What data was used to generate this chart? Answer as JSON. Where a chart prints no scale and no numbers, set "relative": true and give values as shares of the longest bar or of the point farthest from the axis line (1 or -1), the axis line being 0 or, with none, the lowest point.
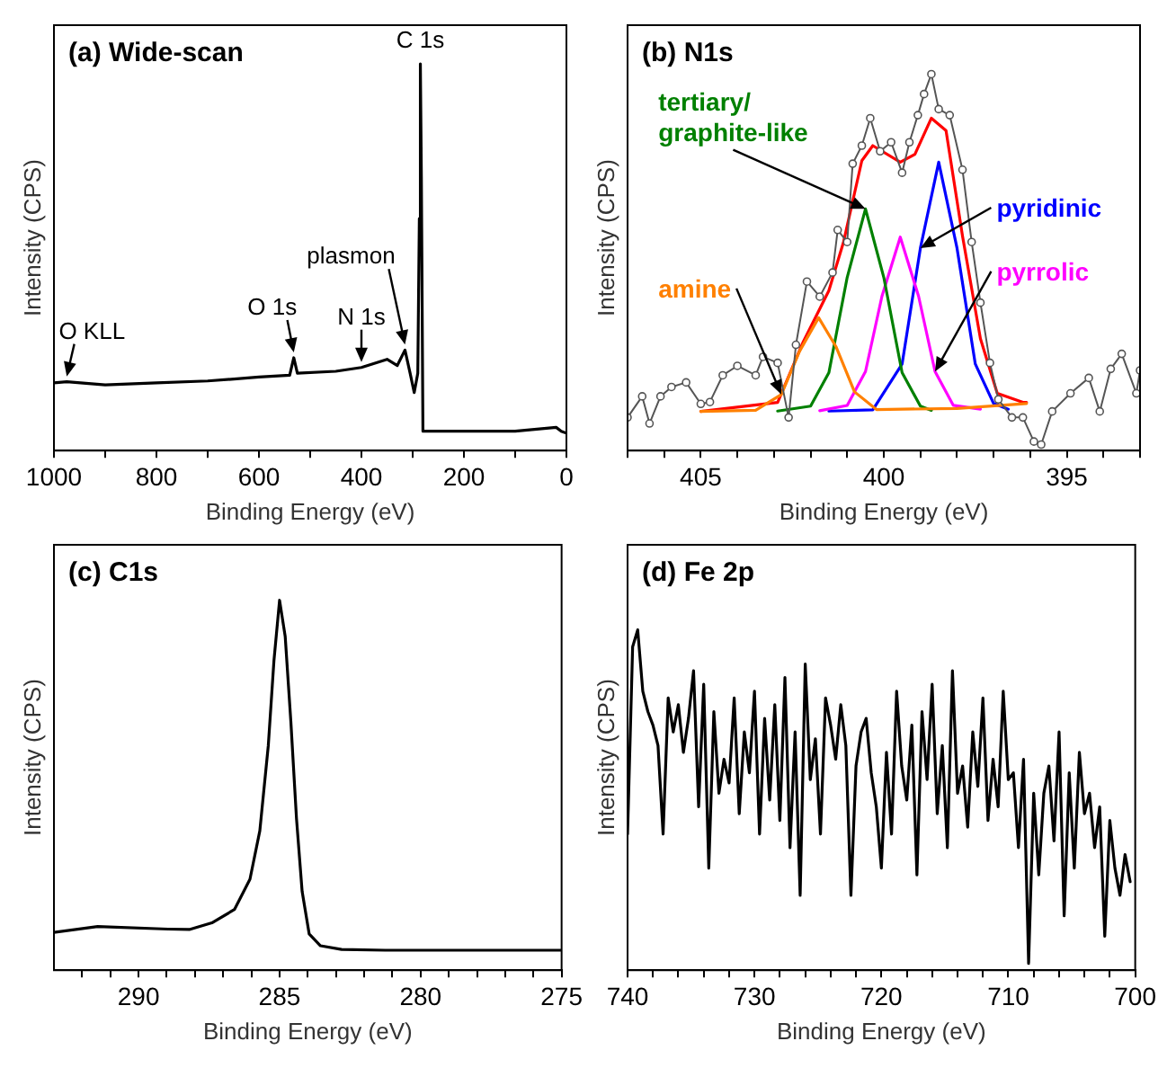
{
  "chart_data": [
    {
      "type": "line",
      "title": "(a) Wide-scan",
      "xlabel": "Binding Energy (eV)",
      "ylabel": "Intensity (CPS)",
      "relative": true,
      "xlim": [
        1000,
        0
      ],
      "xticks": [
        1000,
        {
          "value": 900,
          "label": null
        },
        800,
        {
          "value": 700,
          "label": null
        },
        600,
        {
          "value": 500,
          "label": null
        },
        400,
        {
          "value": 300,
          "label": null
        },
        200,
        {
          "value": 100,
          "label": null
        },
        0
      ],
      "series": [
        {
          "color": "#000000",
          "x": [
            1000,
            975,
            900,
            800,
            700,
            600,
            540,
            532,
            525,
            450,
            400,
            350,
            330,
            315,
            305,
            297,
            290,
            287,
            285,
            283,
            280,
            250,
            100,
            20,
            10,
            0
          ],
          "values": [
            0.175,
            0.178,
            0.17,
            0.175,
            0.18,
            0.19,
            0.195,
            0.24,
            0.2,
            0.205,
            0.215,
            0.236,
            0.22,
            0.26,
            0.2,
            0.15,
            0.2,
            0.6,
            1.0,
            0.7,
            0.05,
            0.05,
            0.05,
            0.06,
            0.05,
            0.045
          ]
        }
      ],
      "annotations": [
        {
          "text": "C 1s",
          "x": 285,
          "y": 1.0
        },
        {
          "text": "O KLL",
          "x": 975,
          "y": 0.178
        },
        {
          "text": "O 1s",
          "x": 532,
          "y": 0.24
        },
        {
          "text": "N 1s",
          "x": 400,
          "y": 0.215
        },
        {
          "text": "plasmon",
          "x": 315,
          "y": 0.26
        }
      ]
    },
    {
      "type": "line",
      "title": "(b) N1s",
      "xlabel": "Binding Energy (eV)",
      "ylabel": "Intensity (CPS)",
      "relative": true,
      "xlim": [
        407,
        393
      ],
      "xticks": [
        {
          "value": 407,
          "label": null
        },
        {
          "value": 406,
          "label": null
        },
        405,
        {
          "value": 404,
          "label": null
        },
        {
          "value": 403,
          "label": null
        },
        {
          "value": 402,
          "label": null
        },
        {
          "value": 401,
          "label": null
        },
        400,
        {
          "value": 399,
          "label": null
        },
        {
          "value": 398,
          "label": null
        },
        {
          "value": 397,
          "label": null
        },
        {
          "value": 396,
          "label": null
        },
        395,
        {
          "value": 394,
          "label": null
        },
        {
          "value": 393,
          "label": null
        }
      ],
      "series": [
        {
          "color": "#555555",
          "marker": "circle",
          "x": [
            407,
            406.6,
            406.4,
            406.1,
            405.8,
            405.4,
            405,
            404.75,
            404.4,
            404,
            403.5,
            403.3,
            402.9,
            402.6,
            402.4,
            402.1,
            401.75,
            401.4,
            401.26,
            401,
            400.85,
            400.6,
            400.37,
            400.1,
            399.8,
            399.5,
            399.3,
            399.07,
            398.9,
            398.7,
            398.5,
            398.2,
            397.85,
            397.6,
            397.36,
            397.1,
            396.87,
            396.5,
            396.2,
            395.9,
            395.7,
            395.4,
            394.9,
            394.4,
            394.1,
            393.8,
            393.5,
            393.1,
            393
          ],
          "values": [
            0.088,
            0.144,
            0.072,
            0.144,
            0.169,
            0.181,
            0.124,
            0.129,
            0.2,
            0.225,
            0.2,
            0.249,
            0.233,
            0.088,
            0.281,
            0.449,
            0.409,
            0.473,
            0.586,
            0.554,
            0.762,
            0.81,
            0.883,
            0.795,
            0.819,
            0.738,
            0.819,
            0.891,
            0.947,
            1.0,
            0.907,
            0.891,
            0.746,
            0.554,
            0.393,
            0.233,
            0.136,
            0.088,
            0.088,
            0.024,
            0.016,
            0.104,
            0.152,
            0.193,
            0.104,
            0.217,
            0.257,
            0.152,
            0.213
          ]
        },
        {
          "name": "amine",
          "color": "#ff8000",
          "x": [
            405,
            403.5,
            402.8,
            402.3,
            401.78,
            401.3,
            400.8,
            400.2,
            398,
            396.1
          ],
          "values": [
            0.104,
            0.107,
            0.149,
            0.264,
            0.353,
            0.275,
            0.156,
            0.109,
            0.112,
            0.125
          ]
        },
        {
          "name": "tertiary/graphite-like",
          "color": "#008000",
          "x": [
            402.9,
            402,
            401.5,
            401,
            400.5,
            400,
            399.5,
            399,
            398.7
          ],
          "values": [
            0.105,
            0.118,
            0.207,
            0.46,
            0.642,
            0.46,
            0.207,
            0.118,
            0.107
          ]
        },
        {
          "name": "pyrrolic",
          "color": "#ff00ff",
          "x": [
            401.75,
            401,
            400.5,
            400.05,
            399.55,
            399.05,
            398.6,
            398.1,
            397.36
          ],
          "values": [
            0.106,
            0.12,
            0.21,
            0.41,
            0.567,
            0.41,
            0.21,
            0.12,
            0.11
          ]
        },
        {
          "name": "pyridinic",
          "color": "#0000ff",
          "x": [
            401.5,
            400.3,
            399.5,
            399,
            398.5,
            398,
            397.5,
            397,
            396.6
          ],
          "values": [
            0.105,
            0.108,
            0.23,
            0.538,
            0.766,
            0.538,
            0.23,
            0.125,
            0.11
          ]
        },
        {
          "color": "#ff0000",
          "x": [
            405,
            402.9,
            402.2,
            401.5,
            401.1,
            400.6,
            400.3,
            399.55,
            399.15,
            398.7,
            398.3,
            397.85,
            397.36,
            396.9,
            396.2,
            396.1
          ],
          "values": [
            0.104,
            0.128,
            0.289,
            0.425,
            0.554,
            0.77,
            0.81,
            0.766,
            0.787,
            0.883,
            0.85,
            0.57,
            0.297,
            0.152,
            0.128,
            0.128
          ]
        }
      ]
    },
    {
      "type": "line",
      "title": "(c) C1s",
      "xlabel": "Binding Energy (eV)",
      "ylabel": "Intensity (CPS)",
      "relative": true,
      "xlim": [
        293,
        275
      ],
      "xticks": [
        {
          "value": 292,
          "label": null
        },
        {
          "value": 291,
          "label": null
        },
        290,
        {
          "value": 289,
          "label": null
        },
        {
          "value": 288,
          "label": null
        },
        {
          "value": 287,
          "label": null
        },
        {
          "value": 286,
          "label": null
        },
        285,
        {
          "value": 284,
          "label": null
        },
        {
          "value": 283,
          "label": null
        },
        {
          "value": 282,
          "label": null
        },
        {
          "value": 281,
          "label": null
        },
        280,
        {
          "value": 279,
          "label": null
        },
        {
          "value": 278,
          "label": null
        },
        {
          "value": 277,
          "label": null
        },
        {
          "value": 276,
          "label": null
        },
        275
      ],
      "series": [
        {
          "color": "#000000",
          "x": [
            293,
            291.45,
            288.95,
            288.2,
            287.4,
            286.6,
            286.05,
            285.7,
            285.4,
            285.2,
            285,
            284.8,
            284.6,
            284.4,
            284.2,
            283.95,
            283.55,
            282.8,
            281.25,
            275
          ],
          "values": [
            0.102,
            0.118,
            0.111,
            0.11,
            0.128,
            0.164,
            0.246,
            0.377,
            0.607,
            0.836,
            1.0,
            0.902,
            0.672,
            0.41,
            0.213,
            0.098,
            0.066,
            0.056,
            0.054,
            0.054
          ]
        }
      ]
    },
    {
      "type": "line",
      "title": "(d) Fe 2p",
      "xlabel": "Binding Energy (eV)",
      "ylabel": "Intensity (CPS)",
      "relative": true,
      "xlim": [
        740,
        700
      ],
      "xticks": [
        740,
        {
          "value": 738,
          "label": null
        },
        {
          "value": 736,
          "label": null
        },
        {
          "value": 734,
          "label": null
        },
        {
          "value": 732,
          "label": null
        },
        730,
        {
          "value": 728,
          "label": null
        },
        {
          "value": 726,
          "label": null
        },
        {
          "value": 724,
          "label": null
        },
        {
          "value": 722,
          "label": null
        },
        720,
        {
          "value": 718,
          "label": null
        },
        {
          "value": 716,
          "label": null
        },
        {
          "value": 714,
          "label": null
        },
        {
          "value": 712,
          "label": null
        },
        710,
        {
          "value": 708,
          "label": null
        },
        {
          "value": 706,
          "label": null
        },
        {
          "value": 704,
          "label": null
        },
        {
          "value": 702,
          "label": null
        },
        700
      ],
      "series": [
        {
          "color": "#000000",
          "x": [
            740,
            739.6,
            739.2,
            738.8,
            738.4,
            738,
            737.6,
            737.2,
            736.8,
            736.4,
            736,
            735.6,
            735.2,
            734.8,
            734.4,
            734,
            733.6,
            733.2,
            732.8,
            732.4,
            732,
            731.6,
            731.2,
            730.8,
            730.4,
            730,
            729.6,
            729.2,
            728.8,
            728.4,
            728,
            727.6,
            727.2,
            726.8,
            726.4,
            726,
            725.6,
            725.2,
            724.8,
            724.4,
            724,
            723.6,
            723.2,
            722.8,
            722.4,
            722,
            721.6,
            721.2,
            720.8,
            720.4,
            720,
            719.6,
            719.2,
            718.8,
            718.4,
            718,
            717.6,
            717.2,
            716.8,
            716.4,
            716,
            715.6,
            715.2,
            714.8,
            714.4,
            714,
            713.6,
            713.2,
            712.8,
            712.4,
            712,
            711.6,
            711.2,
            710.8,
            710.4,
            710,
            709.6,
            709.2,
            708.8,
            708.4,
            708,
            707.6,
            707.2,
            706.8,
            706.4,
            706,
            705.6,
            705.2,
            704.8,
            704.4,
            704,
            703.6,
            703.2,
            702.8,
            702.4,
            702,
            701.6,
            701.2,
            700.8,
            700.4
          ],
          "values": [
            0.4,
            0.95,
            1.0,
            0.82,
            0.76,
            0.72,
            0.66,
            0.4,
            0.8,
            0.7,
            0.78,
            0.64,
            0.74,
            0.88,
            0.48,
            0.84,
            0.3,
            0.76,
            0.52,
            0.62,
            0.55,
            0.8,
            0.46,
            0.7,
            0.58,
            0.82,
            0.4,
            0.74,
            0.5,
            0.78,
            0.44,
            0.86,
            0.36,
            0.7,
            0.22,
            0.9,
            0.56,
            0.68,
            0.4,
            0.8,
            0.72,
            0.62,
            0.78,
            0.66,
            0.22,
            0.6,
            0.7,
            0.74,
            0.58,
            0.48,
            0.3,
            0.64,
            0.4,
            0.82,
            0.6,
            0.5,
            0.72,
            0.28,
            0.76,
            0.56,
            0.84,
            0.46,
            0.66,
            0.36,
            0.88,
            0.52,
            0.6,
            0.42,
            0.7,
            0.54,
            0.8,
            0.44,
            0.62,
            0.48,
            0.82,
            0.56,
            0.58,
            0.36,
            0.62,
            0.02,
            0.52,
            0.28,
            0.52,
            0.6,
            0.38,
            0.7,
            0.16,
            0.58,
            0.3,
            0.64,
            0.46,
            0.52,
            0.36,
            0.48,
            0.1,
            0.44,
            0.3,
            0.22,
            0.34,
            0.26
          ]
        }
      ]
    }
  ]
}
